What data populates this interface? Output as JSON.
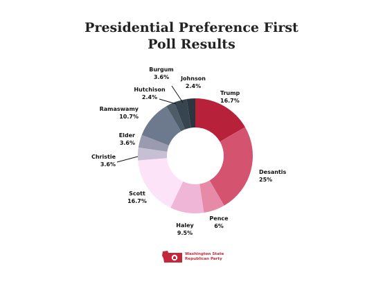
{
  "chart_data": {
    "type": "pie",
    "title": [
      "Presidential Preference First",
      "Poll Results"
    ],
    "slices": [
      {
        "name": "Trump",
        "label": "16.7%",
        "value": 16.7,
        "color": "#b8213a"
      },
      {
        "name": "Desantis",
        "label": "25%",
        "value": 25,
        "color": "#d4546f"
      },
      {
        "name": "Pence",
        "label": "6%",
        "value": 6,
        "color": "#e68aa8"
      },
      {
        "name": "Haley",
        "label": "9.5%",
        "value": 9.5,
        "color": "#efb6d7"
      },
      {
        "name": "Scott",
        "label": "16.7%",
        "value": 16.7,
        "color": "#fce3f8"
      },
      {
        "name": "Christie",
        "label": "3.6%",
        "value": 3.6,
        "color": "#c7bfd3"
      },
      {
        "name": "Elder",
        "label": "3.6%",
        "value": 3.6,
        "color": "#9b9bb0"
      },
      {
        "name": "Ramaswamy",
        "label": "10.7%",
        "value": 10.7,
        "color": "#6d7a8e"
      },
      {
        "name": "Hutchison",
        "label": "2.4%",
        "value": 2.4,
        "color": "#4d5d68"
      },
      {
        "name": "Burgum",
        "label": "3.6%",
        "value": 3.6,
        "color": "#37454f"
      },
      {
        "name": "Johnson",
        "label": "2.4%",
        "value": 2.4,
        "color": "#2d3541"
      }
    ],
    "legend": "none",
    "donut": true
  },
  "logo": {
    "line1": "Washington State",
    "line2": "Republican Party",
    "color": "#c3283a"
  }
}
